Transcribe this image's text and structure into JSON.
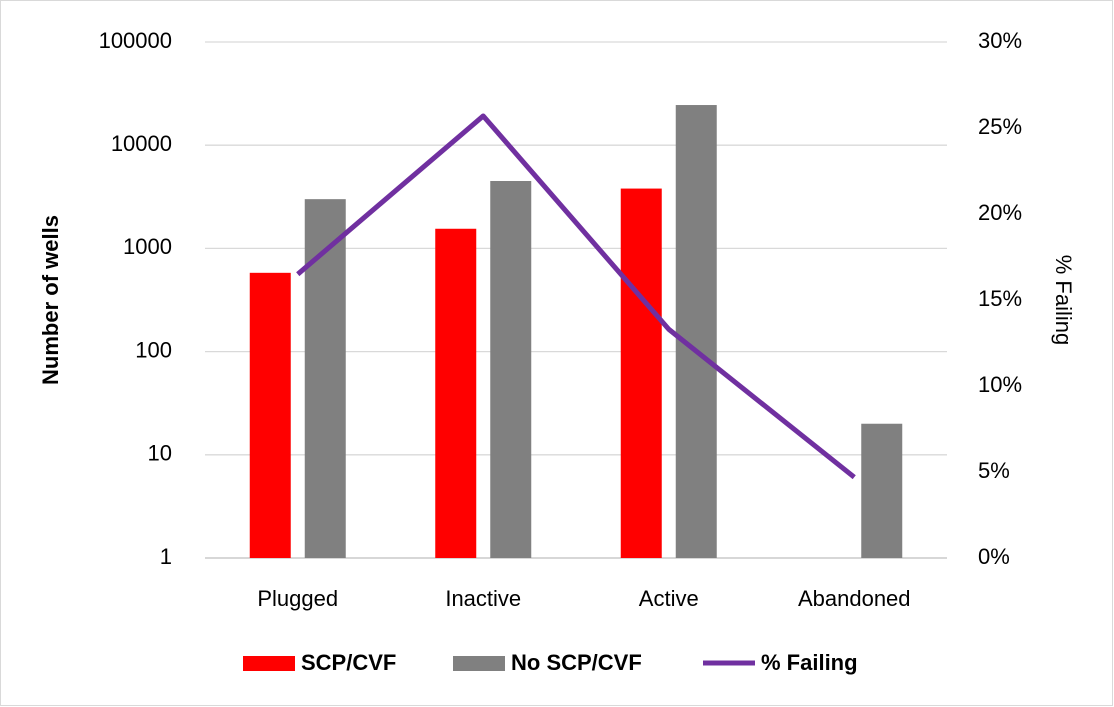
{
  "chart_data": {
    "type": "bar",
    "categories": [
      "Plugged",
      "Inactive",
      "Active",
      "Abandoned"
    ],
    "series": [
      {
        "name": "SCP/CVF",
        "type": "bar",
        "color": "#ff0000",
        "values": [
          580,
          1550,
          3800,
          null
        ]
      },
      {
        "name": "No SCP/CVF",
        "type": "bar",
        "color": "#808080",
        "values": [
          3000,
          4500,
          24500,
          20
        ]
      },
      {
        "name": "% Failing",
        "type": "line",
        "axis": "y2",
        "color": "#7030a0",
        "values": [
          16.5,
          25.7,
          13.3,
          4.7
        ]
      }
    ],
    "ylabel": "Number of wells",
    "y2label": "% Failing",
    "yscale": "log",
    "ylim": [
      1,
      100000
    ],
    "yticks": [
      1,
      10,
      100,
      1000,
      10000,
      100000
    ],
    "y2lim": [
      0,
      30
    ],
    "y2ticks": [
      {
        "value": 0,
        "label": "0%"
      },
      {
        "value": 5,
        "label": "5%"
      },
      {
        "value": 10,
        "label": "10%"
      },
      {
        "value": 15,
        "label": "15%"
      },
      {
        "value": 20,
        "label": "20%"
      },
      {
        "value": 25,
        "label": "25%"
      },
      {
        "value": 30,
        "label": "30%"
      }
    ],
    "grid": true,
    "legend": "bottom"
  }
}
